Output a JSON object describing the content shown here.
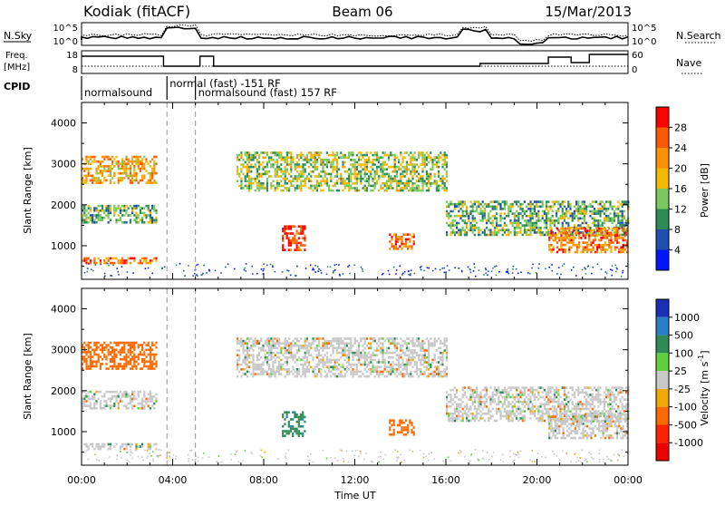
{
  "header": {
    "station": "Kodiak (fitACF)",
    "beam": "Beam 06",
    "date": "15/Mar/2013"
  },
  "top_panels": {
    "nsky_label": "N.Sky",
    "nsky_ticks": [
      "10^5",
      "10^0"
    ],
    "nsearch_label": "N.Search",
    "nsearch_ticks": [
      "10^5",
      "10^0"
    ],
    "freq_label_line1": "Freq.",
    "freq_label_line2": "[MHz]",
    "freq_ticks": [
      "18",
      "8"
    ],
    "nave_label": "Nave",
    "nave_ticks": [
      "60",
      "0"
    ],
    "cpid_label": "CPID",
    "cpid_segments": [
      {
        "text": "normalsound",
        "start_h": 0,
        "end_h": 3.75
      },
      {
        "text": "normal (fast) -151 RF",
        "start_h": 3.75,
        "end_h": 5.0
      },
      {
        "text": "normalsound (fast) 157 RF",
        "start_h": 5.0,
        "end_h": 24
      }
    ]
  },
  "power_panel": {
    "ylabel": "Slant Range [km]",
    "cbar_label": "Power [dB]",
    "cbar_ticks": [
      "28",
      "24",
      "20",
      "16",
      "12",
      "8",
      "4"
    ],
    "cbar_colors": [
      "#ff0000",
      "#ff5a00",
      "#ff9000",
      "#f5b800",
      "#79c95c",
      "#2e8b57",
      "#1f4fb0",
      "#0018ff"
    ]
  },
  "velocity_panel": {
    "ylabel": "Slant Range [km]",
    "cbar_label": "Velocity [m s",
    "cbar_label_exp": "-1",
    "cbar_label_end": "]",
    "cbar_ticks": [
      "1000",
      "500",
      "100",
      "25",
      "-25",
      "-100",
      "-500",
      "-1000"
    ],
    "cbar_colors": [
      "#1a2fb5",
      "#2a7ec8",
      "#2e8b57",
      "#5fd040",
      "#c8c8c8",
      "#f0a800",
      "#ff6a00",
      "#ff2200",
      "#ee0000"
    ]
  },
  "x_axis": {
    "label": "Time UT",
    "ticks": [
      "00:00",
      "04:00",
      "08:00",
      "12:00",
      "16:00",
      "20:00",
      "00:00"
    ]
  },
  "y_axis_ticks": [
    "4000",
    "3000",
    "2000",
    "1000"
  ],
  "chart_data": [
    {
      "type": "heatmap",
      "name": "Power",
      "x_unit": "hours UT",
      "y_unit": "km",
      "xlim": [
        0,
        24
      ],
      "ylim": [
        180,
        4500
      ],
      "clim_dB": [
        0,
        32
      ],
      "echo_regions": [
        {
          "t0": 0.0,
          "t1": 3.3,
          "r0": 2550,
          "r1": 3200,
          "power_dB": 20
        },
        {
          "t0": 0.0,
          "t1": 3.3,
          "r0": 1550,
          "r1": 2000,
          "power_dB": 12
        },
        {
          "t0": 0.0,
          "t1": 3.3,
          "r0": 580,
          "r1": 720,
          "power_dB": 24
        },
        {
          "t0": 6.8,
          "t1": 16.0,
          "r0": 2350,
          "r1": 3300,
          "power_dB": 14
        },
        {
          "t0": 8.8,
          "t1": 9.8,
          "r0": 900,
          "r1": 1500,
          "power_dB": 28
        },
        {
          "t0": 13.5,
          "t1": 14.6,
          "r0": 950,
          "r1": 1300,
          "power_dB": 24
        },
        {
          "t0": 16.0,
          "t1": 24.0,
          "r0": 1250,
          "r1": 2100,
          "power_dB": 12
        },
        {
          "t0": 20.5,
          "t1": 24.0,
          "r0": 850,
          "r1": 1450,
          "power_dB": 24
        }
      ]
    },
    {
      "type": "heatmap",
      "name": "Velocity",
      "x_unit": "hours UT",
      "y_unit": "km",
      "xlim": [
        0,
        24
      ],
      "ylim": [
        180,
        4500
      ],
      "clim_ms": [
        -1000,
        1000
      ],
      "echo_regions": [
        {
          "t0": 0.0,
          "t1": 3.3,
          "r0": 2550,
          "r1": 3200,
          "velocity_ms": -300
        },
        {
          "t0": 0.0,
          "t1": 3.3,
          "r0": 1550,
          "r1": 2000,
          "velocity_ms": 0
        },
        {
          "t0": 0.0,
          "t1": 3.3,
          "r0": 580,
          "r1": 720,
          "velocity_ms": 0
        },
        {
          "t0": 6.8,
          "t1": 16.0,
          "r0": 2350,
          "r1": 3300,
          "velocity_ms": 0
        },
        {
          "t0": 8.8,
          "t1": 9.8,
          "r0": 900,
          "r1": 1500,
          "velocity_ms": 400
        },
        {
          "t0": 13.5,
          "t1": 14.6,
          "r0": 950,
          "r1": 1300,
          "velocity_ms": -300
        },
        {
          "t0": 16.0,
          "t1": 24.0,
          "r0": 1250,
          "r1": 2100,
          "velocity_ms": 0
        },
        {
          "t0": 20.5,
          "t1": 24.0,
          "r0": 850,
          "r1": 1450,
          "velocity_ms": 0
        }
      ]
    }
  ]
}
